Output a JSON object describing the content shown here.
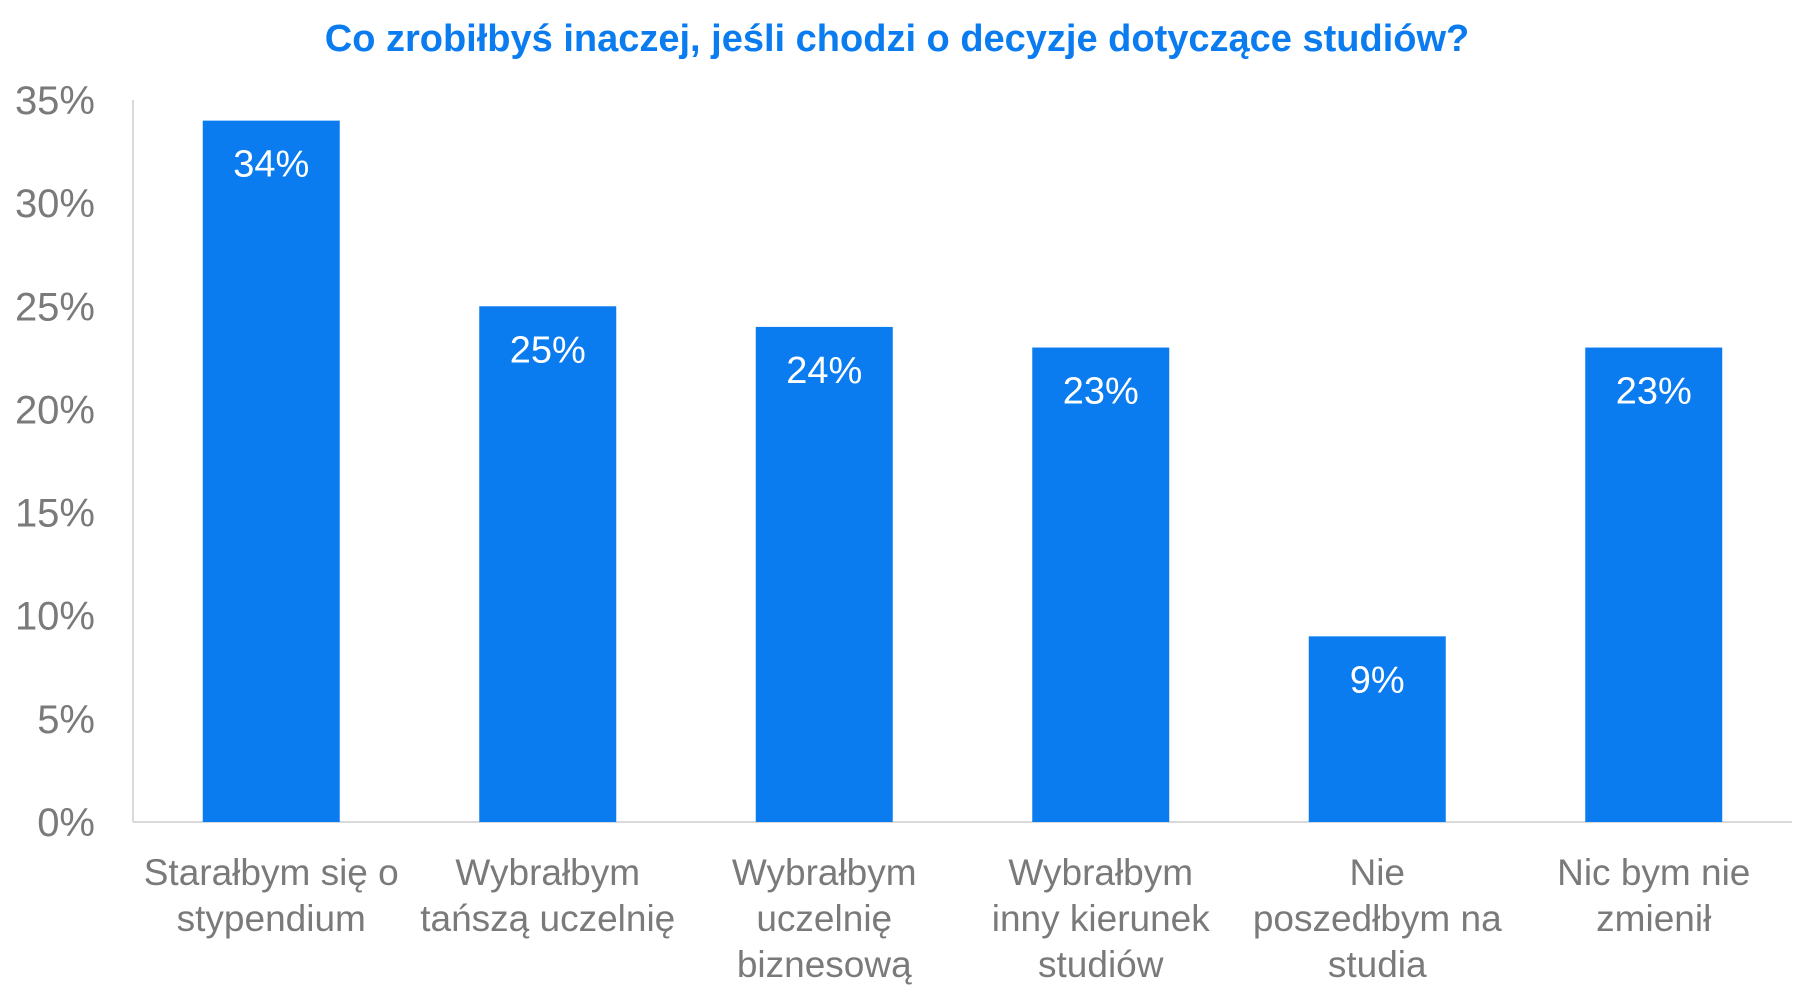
{
  "chart_data": {
    "type": "bar",
    "title": "Co zrobiłbyś inaczej, jeśli chodzi o decyzje dotyczące studiów?",
    "categories": [
      [
        "Starałbym się o",
        "stypendium"
      ],
      [
        "Wybrałbym",
        "tańszą uczelnię"
      ],
      [
        "Wybrałbym",
        "uczelnię",
        "biznesową"
      ],
      [
        "Wybrałbym",
        "inny kierunek",
        "studiów"
      ],
      [
        "Nie",
        "poszedłbym na",
        "studia"
      ],
      [
        "Nic bym nie",
        "zmienił"
      ]
    ],
    "values": [
      34,
      25,
      24,
      23,
      9,
      23
    ],
    "data_labels": [
      "34%",
      "25%",
      "24%",
      "23%",
      "9%",
      "23%"
    ],
    "y_ticks": [
      "0%",
      "5%",
      "10%",
      "15%",
      "20%",
      "25%",
      "30%",
      "35%"
    ],
    "ylim": [
      0,
      35
    ],
    "grid": false,
    "legend": "none",
    "bar_color": "#0a7cf0",
    "axis_color": "#d9d9d9",
    "text_color": "#7a7a7a"
  }
}
